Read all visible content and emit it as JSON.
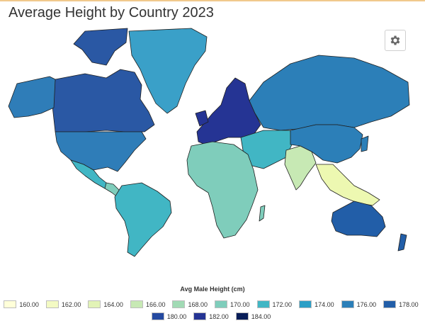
{
  "page": {
    "title": "Average Height by Country 2023",
    "settings_icon": "gear-icon"
  },
  "map": {
    "ocean_color": "#ffffff",
    "border_color": "#1f1f1f",
    "regions": [
      {
        "name": "greenland",
        "color": "#3aa0c8"
      },
      {
        "name": "canada",
        "color": "#2a58a4"
      },
      {
        "name": "usa",
        "color": "#2f7db8"
      },
      {
        "name": "mexico",
        "color": "#41b6c4"
      },
      {
        "name": "central-america",
        "color": "#7fcdbb"
      },
      {
        "name": "south-america",
        "color": "#41b6c4"
      },
      {
        "name": "europe",
        "color": "#253494"
      },
      {
        "name": "russia",
        "color": "#2c7fb8"
      },
      {
        "name": "middle-east",
        "color": "#41b6c4"
      },
      {
        "name": "africa",
        "color": "#7fcdbb"
      },
      {
        "name": "india",
        "color": "#c7e9b4"
      },
      {
        "name": "china",
        "color": "#2c7fb8"
      },
      {
        "name": "southeast-asia",
        "color": "#edf8b1"
      },
      {
        "name": "australia",
        "color": "#225ea8"
      }
    ]
  },
  "legend": {
    "title": "Avg Male Height (cm)",
    "items": [
      {
        "label": "160.00",
        "color": "#ffffd9"
      },
      {
        "label": "162.00",
        "color": "#f3fac3"
      },
      {
        "label": "164.00",
        "color": "#e2f3b6"
      },
      {
        "label": "166.00",
        "color": "#c7e9b4"
      },
      {
        "label": "168.00",
        "color": "#a1dab4"
      },
      {
        "label": "170.00",
        "color": "#7fcdbb"
      },
      {
        "label": "172.00",
        "color": "#41b6c4"
      },
      {
        "label": "174.00",
        "color": "#2c9fc6"
      },
      {
        "label": "176.00",
        "color": "#2c7fb8"
      },
      {
        "label": "178.00",
        "color": "#225ea8"
      },
      {
        "label": "180.00",
        "color": "#2449a0"
      },
      {
        "label": "182.00",
        "color": "#253494"
      },
      {
        "label": "184.00",
        "color": "#081d58"
      }
    ]
  }
}
